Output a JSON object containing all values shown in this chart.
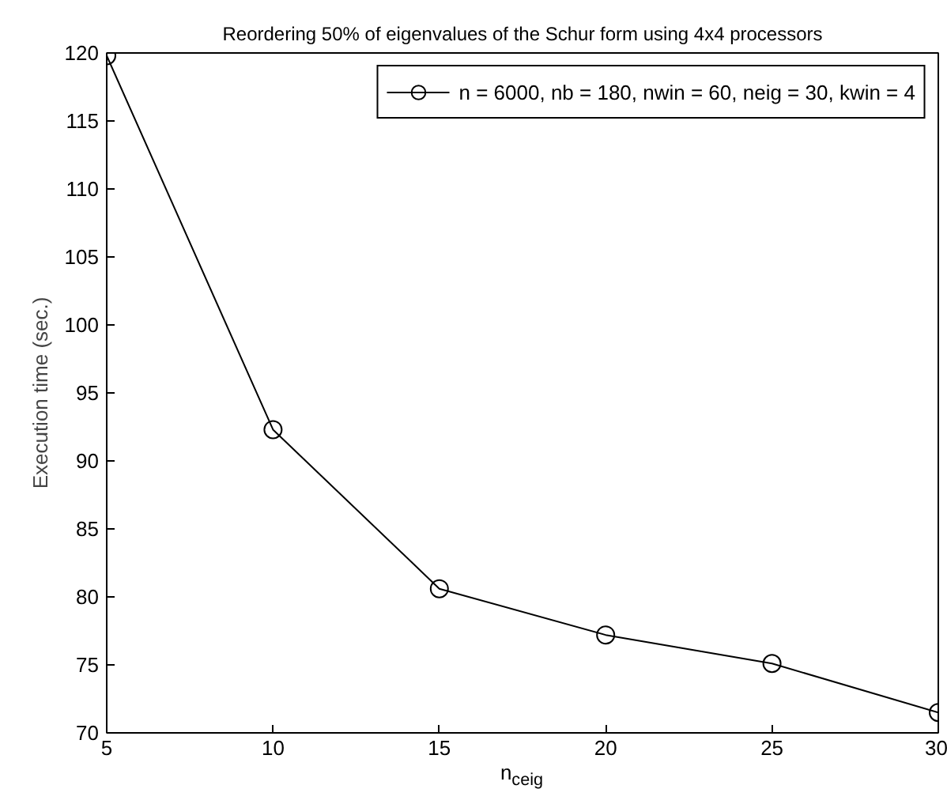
{
  "chart_data": {
    "type": "line",
    "title": "Reordering 50% of eigenvalues of the Schur form using 4x4 processors",
    "xlabel": "n$_{ceig}$",
    "ylabel": "Execution time (sec.)",
    "x": [
      5,
      10,
      15,
      20,
      25,
      30
    ],
    "series": [
      {
        "name": "n = 6000, nb = 180, nwin = 60, neig = 30, kwin = 4",
        "color": "#000000",
        "values": [
          119.8,
          92.3,
          80.6,
          77.2,
          75.1,
          71.5
        ]
      }
    ],
    "xlim": [
      5,
      30
    ],
    "xticks": [
      5,
      10,
      15,
      20,
      25,
      30
    ],
    "ylim": [
      70,
      120
    ],
    "yticks": [
      70,
      75,
      80,
      85,
      90,
      95,
      100,
      105,
      110,
      115,
      120
    ],
    "grid": false,
    "legend": "top right",
    "marker": "circle",
    "line_style": "solid"
  }
}
